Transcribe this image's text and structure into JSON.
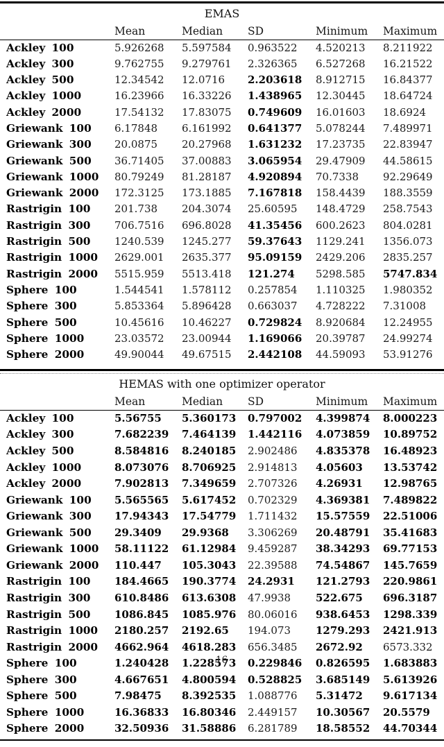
{
  "page_number": "16",
  "tables": [
    {
      "title": "EMAS",
      "columns": [
        "Mean",
        "Median",
        "SD",
        "Minimum",
        "Maximum"
      ],
      "rows": [
        {
          "label": "Ackley 100",
          "values": [
            "5.926268",
            "5.597584",
            "0.963522",
            "4.520213",
            "8.211922"
          ],
          "bold": [
            false,
            false,
            false,
            false,
            false
          ]
        },
        {
          "label": "Ackley 300",
          "values": [
            "9.762755",
            "9.279761",
            "2.326365",
            "6.527268",
            "16.21522"
          ],
          "bold": [
            false,
            false,
            false,
            false,
            false
          ]
        },
        {
          "label": "Ackley 500",
          "values": [
            "12.34542",
            "12.0716",
            "2.203618",
            "8.912715",
            "16.84377"
          ],
          "bold": [
            false,
            false,
            true,
            false,
            false
          ]
        },
        {
          "label": "Ackley 1000",
          "values": [
            "16.23966",
            "16.33226",
            "1.438965",
            "12.30445",
            "18.64724"
          ],
          "bold": [
            false,
            false,
            true,
            false,
            false
          ]
        },
        {
          "label": "Ackley 2000",
          "values": [
            "17.54132",
            "17.83075",
            "0.749609",
            "16.01603",
            "18.6924"
          ],
          "bold": [
            false,
            false,
            true,
            false,
            false
          ]
        },
        {
          "label": "Griewank 100",
          "values": [
            "6.17848",
            "6.161992",
            "0.641377",
            "5.078244",
            "7.489971"
          ],
          "bold": [
            false,
            false,
            true,
            false,
            false
          ]
        },
        {
          "label": "Griewank 300",
          "values": [
            "20.0875",
            "20.27968",
            "1.631232",
            "17.23735",
            "22.83947"
          ],
          "bold": [
            false,
            false,
            true,
            false,
            false
          ]
        },
        {
          "label": "Griewank 500",
          "values": [
            "36.71405",
            "37.00883",
            "3.065954",
            "29.47909",
            "44.58615"
          ],
          "bold": [
            false,
            false,
            true,
            false,
            false
          ]
        },
        {
          "label": "Griewank 1000",
          "values": [
            "80.79249",
            "81.28187",
            "4.920894",
            "70.7338",
            "92.29649"
          ],
          "bold": [
            false,
            false,
            true,
            false,
            false
          ]
        },
        {
          "label": "Griewank 2000",
          "values": [
            "172.3125",
            "173.1885",
            "7.167818",
            "158.4439",
            "188.3559"
          ],
          "bold": [
            false,
            false,
            true,
            false,
            false
          ]
        },
        {
          "label": "Rastrigin 100",
          "values": [
            "201.738",
            "204.3074",
            "25.60595",
            "148.4729",
            "258.7543"
          ],
          "bold": [
            false,
            false,
            false,
            false,
            false
          ]
        },
        {
          "label": "Rastrigin 300",
          "values": [
            "706.7516",
            "696.8028",
            "41.35456",
            "600.2623",
            "804.0281"
          ],
          "bold": [
            false,
            false,
            true,
            false,
            false
          ]
        },
        {
          "label": "Rastrigin 500",
          "values": [
            "1240.539",
            "1245.277",
            "59.37643",
            "1129.241",
            "1356.073"
          ],
          "bold": [
            false,
            false,
            true,
            false,
            false
          ]
        },
        {
          "label": "Rastrigin 1000",
          "values": [
            "2629.001",
            "2635.377",
            "95.09159",
            "2429.206",
            "2835.257"
          ],
          "bold": [
            false,
            false,
            true,
            false,
            false
          ]
        },
        {
          "label": "Rastrigin 2000",
          "values": [
            "5515.959",
            "5513.418",
            "121.274",
            "5298.585",
            "5747.834"
          ],
          "bold": [
            false,
            false,
            true,
            false,
            true
          ]
        },
        {
          "label": "Sphere 100",
          "values": [
            "1.544541",
            "1.578112",
            "0.257854",
            "1.110325",
            "1.980352"
          ],
          "bold": [
            false,
            false,
            false,
            false,
            false
          ]
        },
        {
          "label": "Sphere 300",
          "values": [
            "5.853364",
            "5.896428",
            "0.663037",
            "4.728222",
            "7.31008"
          ],
          "bold": [
            false,
            false,
            false,
            false,
            false
          ]
        },
        {
          "label": "Sphere 500",
          "values": [
            "10.45616",
            "10.46227",
            "0.729824",
            "8.920684",
            "12.24955"
          ],
          "bold": [
            false,
            false,
            true,
            false,
            false
          ]
        },
        {
          "label": "Sphere 1000",
          "values": [
            "23.03572",
            "23.00944",
            "1.169066",
            "20.39787",
            "24.99274"
          ],
          "bold": [
            false,
            false,
            true,
            false,
            false
          ]
        },
        {
          "label": "Sphere 2000",
          "values": [
            "49.90044",
            "49.67515",
            "2.442108",
            "44.59093",
            "53.91276"
          ],
          "bold": [
            false,
            false,
            true,
            false,
            false
          ]
        }
      ]
    },
    {
      "title": "HEMAS with one optimizer operator",
      "columns": [
        "Mean",
        "Median",
        "SD",
        "Minimum",
        "Maximum"
      ],
      "rows": [
        {
          "label": "Ackley 100",
          "values": [
            "5.56755",
            "5.360173",
            "0.797002",
            "4.399874",
            "8.000223"
          ],
          "bold": [
            true,
            true,
            true,
            true,
            true
          ]
        },
        {
          "label": "Ackley 300",
          "values": [
            "7.682239",
            "7.464139",
            "1.442116",
            "4.073859",
            "10.89752"
          ],
          "bold": [
            true,
            true,
            true,
            true,
            true
          ]
        },
        {
          "label": "Ackley 500",
          "values": [
            "8.584816",
            "8.240185",
            "2.902486",
            "4.835378",
            "16.48923"
          ],
          "bold": [
            true,
            true,
            false,
            true,
            true
          ]
        },
        {
          "label": "Ackley 1000",
          "values": [
            "8.073076",
            "8.706925",
            "2.914813",
            "4.05603",
            "13.53742"
          ],
          "bold": [
            true,
            true,
            false,
            true,
            true
          ]
        },
        {
          "label": "Ackley 2000",
          "values": [
            "7.902813",
            "7.349659",
            "2.707326",
            "4.26931",
            "12.98765"
          ],
          "bold": [
            true,
            true,
            false,
            true,
            true
          ]
        },
        {
          "label": "Griewank 100",
          "values": [
            "5.565565",
            "5.617452",
            "0.702329",
            "4.369381",
            "7.489822"
          ],
          "bold": [
            true,
            true,
            false,
            true,
            true
          ]
        },
        {
          "label": "Griewank 300",
          "values": [
            "17.94343",
            "17.54779",
            "1.711432",
            "15.57559",
            "22.51006"
          ],
          "bold": [
            true,
            true,
            false,
            true,
            true
          ]
        },
        {
          "label": "Griewank 500",
          "values": [
            "29.3409",
            "29.9368",
            "3.306269",
            "20.48791",
            "35.41683"
          ],
          "bold": [
            true,
            true,
            false,
            true,
            true
          ]
        },
        {
          "label": "Griewank 1000",
          "values": [
            "58.11122",
            "61.12984",
            "9.459287",
            "38.34293",
            "69.77153"
          ],
          "bold": [
            true,
            true,
            false,
            true,
            true
          ]
        },
        {
          "label": "Griewank 2000",
          "values": [
            "110.447",
            "105.3043",
            "22.39588",
            "74.54867",
            "145.7659"
          ],
          "bold": [
            true,
            true,
            false,
            true,
            true
          ]
        },
        {
          "label": "Rastrigin 100",
          "values": [
            "184.4665",
            "190.3774",
            "24.2931",
            "121.2793",
            "220.9861"
          ],
          "bold": [
            true,
            true,
            true,
            true,
            true
          ]
        },
        {
          "label": "Rastrigin 300",
          "values": [
            "610.8486",
            "613.6308",
            "47.9938",
            "522.675",
            "696.3187"
          ],
          "bold": [
            true,
            true,
            false,
            true,
            true
          ]
        },
        {
          "label": "Rastrigin 500",
          "values": [
            "1086.845",
            "1085.976",
            "80.06016",
            "938.6453",
            "1298.339"
          ],
          "bold": [
            true,
            true,
            false,
            true,
            true
          ]
        },
        {
          "label": "Rastrigin 1000",
          "values": [
            "2180.257",
            "2192.65",
            "194.073",
            "1279.293",
            "2421.913"
          ],
          "bold": [
            true,
            true,
            false,
            true,
            true
          ]
        },
        {
          "label": "Rastrigin 2000",
          "values": [
            "4662.964",
            "4618.283",
            "656.3485",
            "2672.92",
            "6573.332"
          ],
          "bold": [
            true,
            true,
            false,
            true,
            false
          ]
        },
        {
          "label": "Sphere 100",
          "values": [
            "1.240428",
            "1.228573",
            "0.229846",
            "0.826595",
            "1.683883"
          ],
          "bold": [
            true,
            true,
            true,
            true,
            true
          ]
        },
        {
          "label": "Sphere 300",
          "values": [
            "4.667651",
            "4.800594",
            "0.528825",
            "3.685149",
            "5.613926"
          ],
          "bold": [
            true,
            true,
            true,
            true,
            true
          ]
        },
        {
          "label": "Sphere 500",
          "values": [
            "7.98475",
            "8.392535",
            "1.088776",
            "5.31472",
            "9.617134"
          ],
          "bold": [
            true,
            true,
            false,
            true,
            true
          ]
        },
        {
          "label": "Sphere 1000",
          "values": [
            "16.36833",
            "16.80346",
            "2.449157",
            "10.30567",
            "20.5579"
          ],
          "bold": [
            true,
            true,
            false,
            true,
            true
          ]
        },
        {
          "label": "Sphere 2000",
          "values": [
            "32.50936",
            "31.58886",
            "6.281789",
            "18.58552",
            "44.70344"
          ],
          "bold": [
            true,
            true,
            false,
            true,
            true
          ]
        }
      ]
    }
  ]
}
